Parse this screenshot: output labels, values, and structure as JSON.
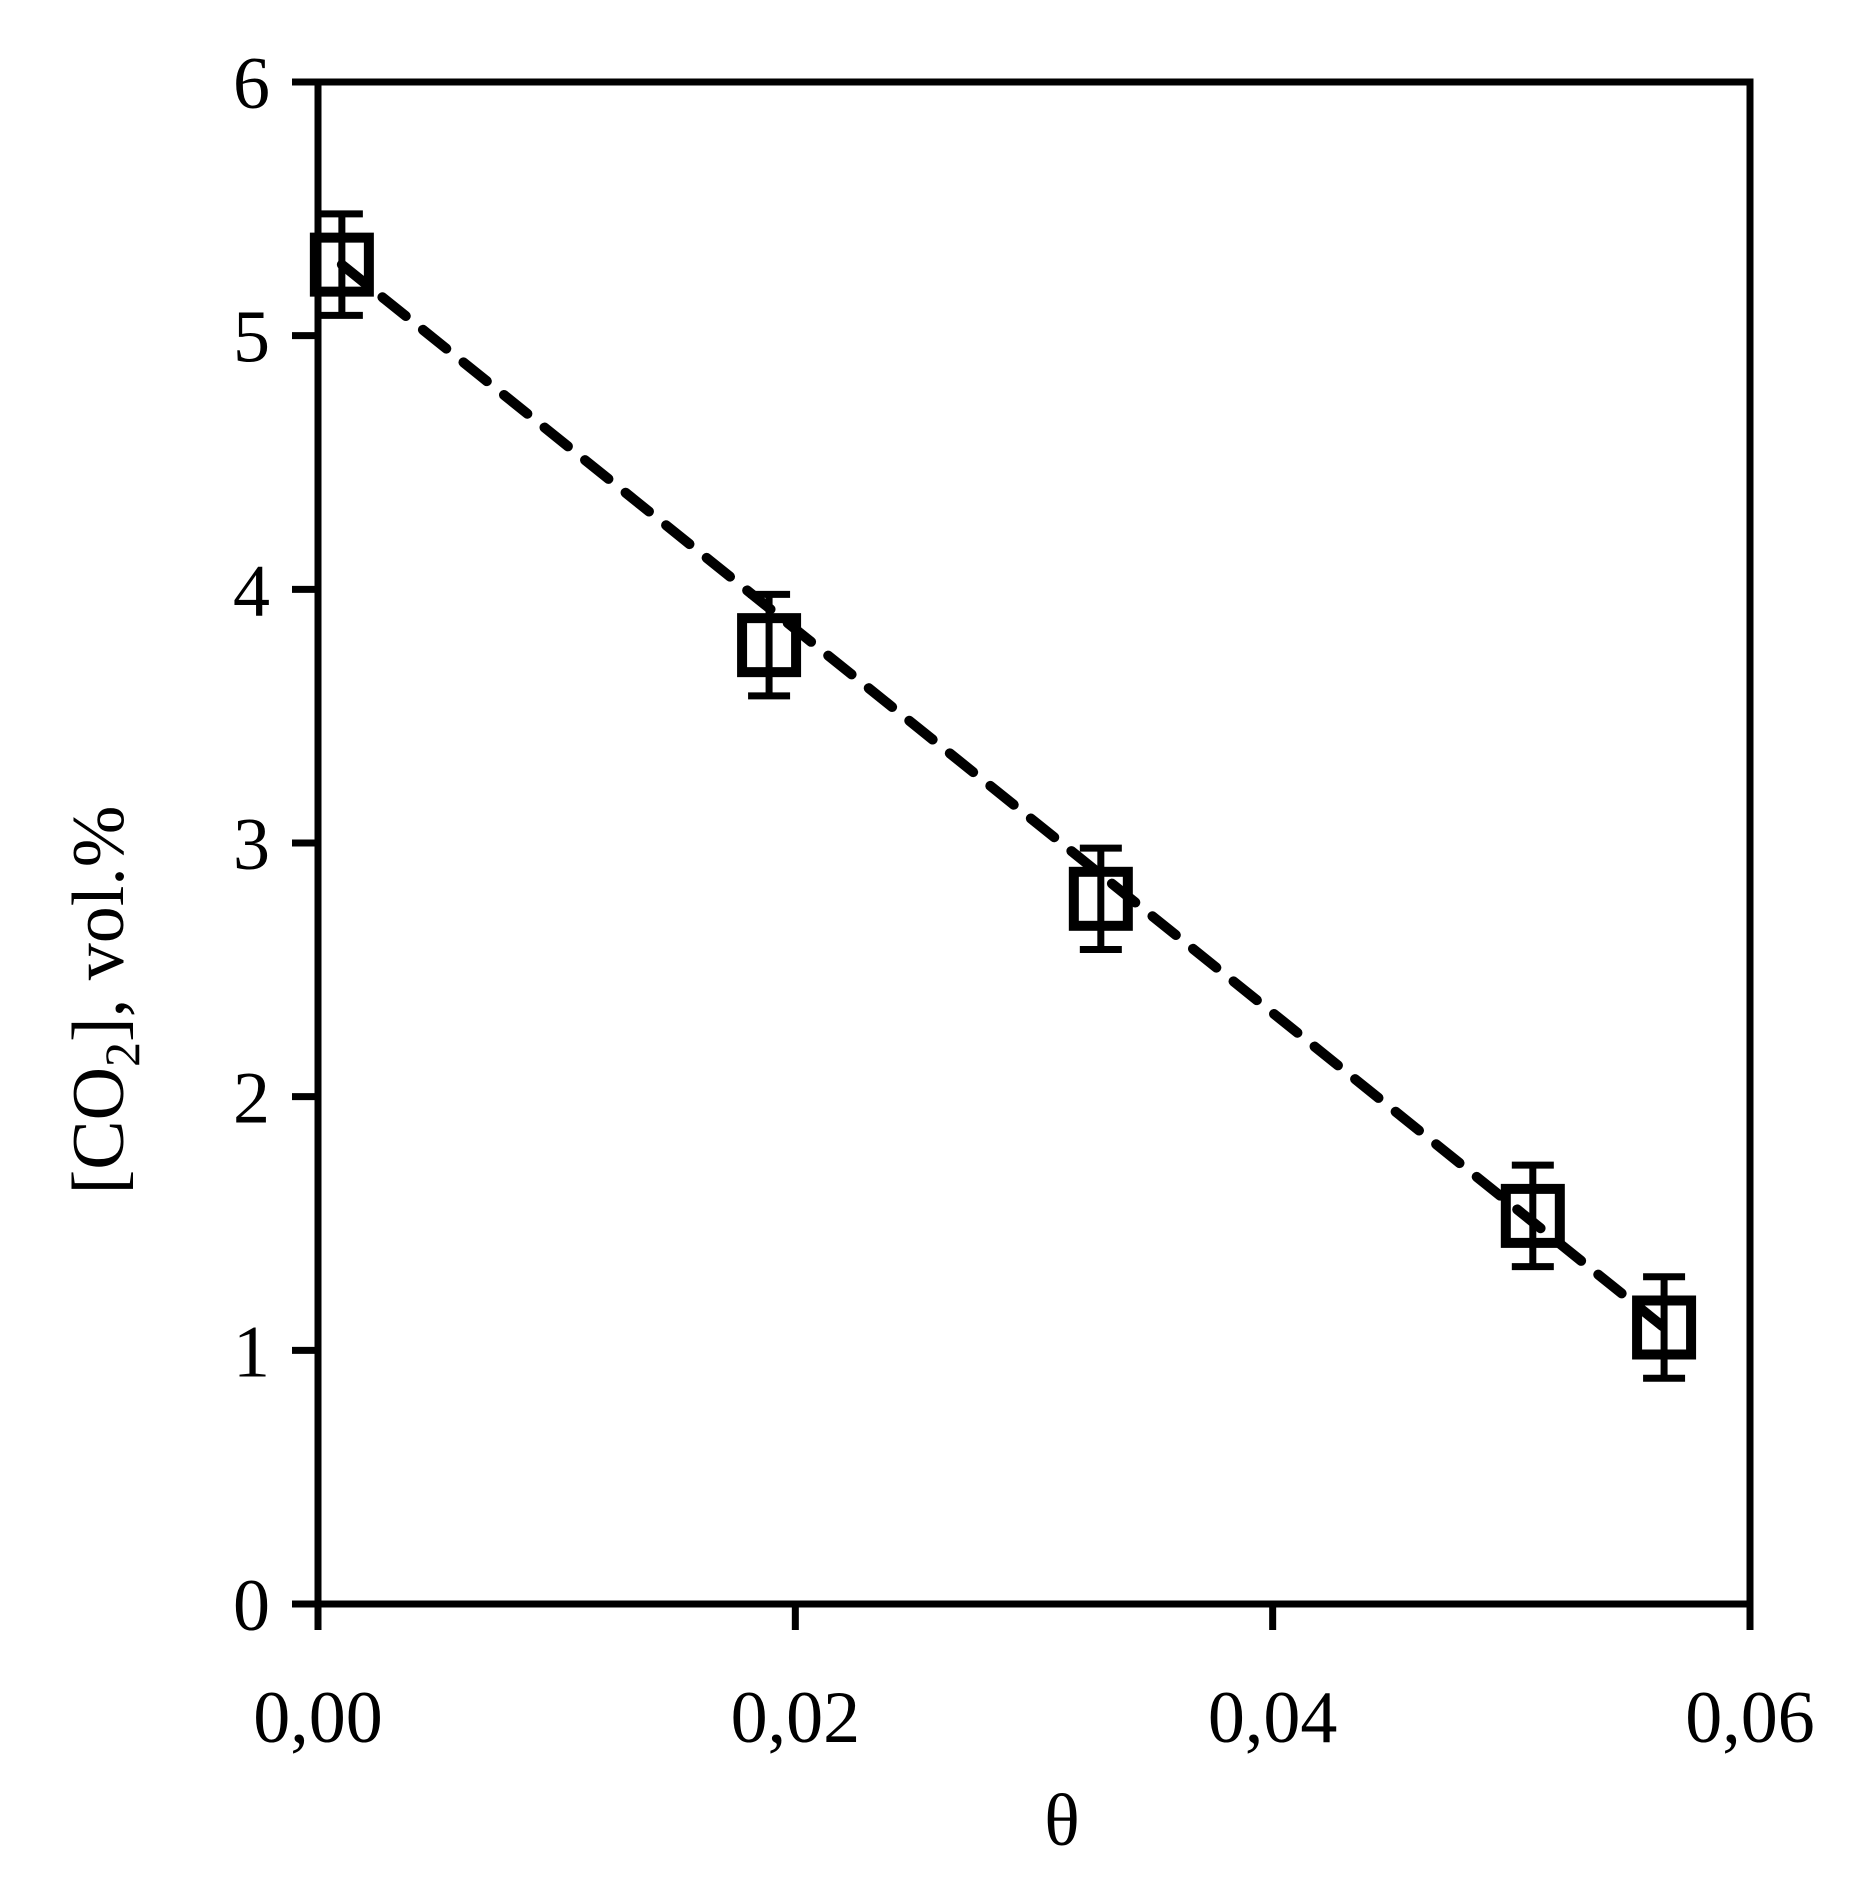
{
  "chart_data": {
    "type": "scatter",
    "xlabel": "θ",
    "ylabel": {
      "prefix": "[CO",
      "subscript": "2",
      "suffix": "], vol.%"
    },
    "xlim": [
      0,
      0.06
    ],
    "ylim": [
      0,
      6
    ],
    "x_ticks": [
      0,
      0.02,
      0.04,
      0.06
    ],
    "x_tick_labels": [
      "0,00",
      "0,02",
      "0,04",
      "0,06"
    ],
    "y_ticks": [
      0,
      1,
      2,
      3,
      4,
      5,
      6
    ],
    "y_tick_labels": [
      "0",
      "1",
      "2",
      "3",
      "4",
      "5",
      "6"
    ],
    "grid": false,
    "legend": "none",
    "series": [
      {
        "marker": "open-square",
        "color": "#000000",
        "points": [
          {
            "x": 0.001,
            "y": 5.28,
            "err": 0.2
          },
          {
            "x": 0.0189,
            "y": 3.78,
            "err": 0.2
          },
          {
            "x": 0.0328,
            "y": 2.78,
            "err": 0.2
          },
          {
            "x": 0.0509,
            "y": 1.53,
            "err": 0.2
          },
          {
            "x": 0.0564,
            "y": 1.09,
            "err": 0.2
          }
        ]
      }
    ],
    "fit_line": {
      "style": "dashed",
      "color": "#000000",
      "points": [
        {
          "x": 0.001,
          "y": 5.28
        },
        {
          "x": 0.0564,
          "y": 1.09
        }
      ]
    }
  }
}
